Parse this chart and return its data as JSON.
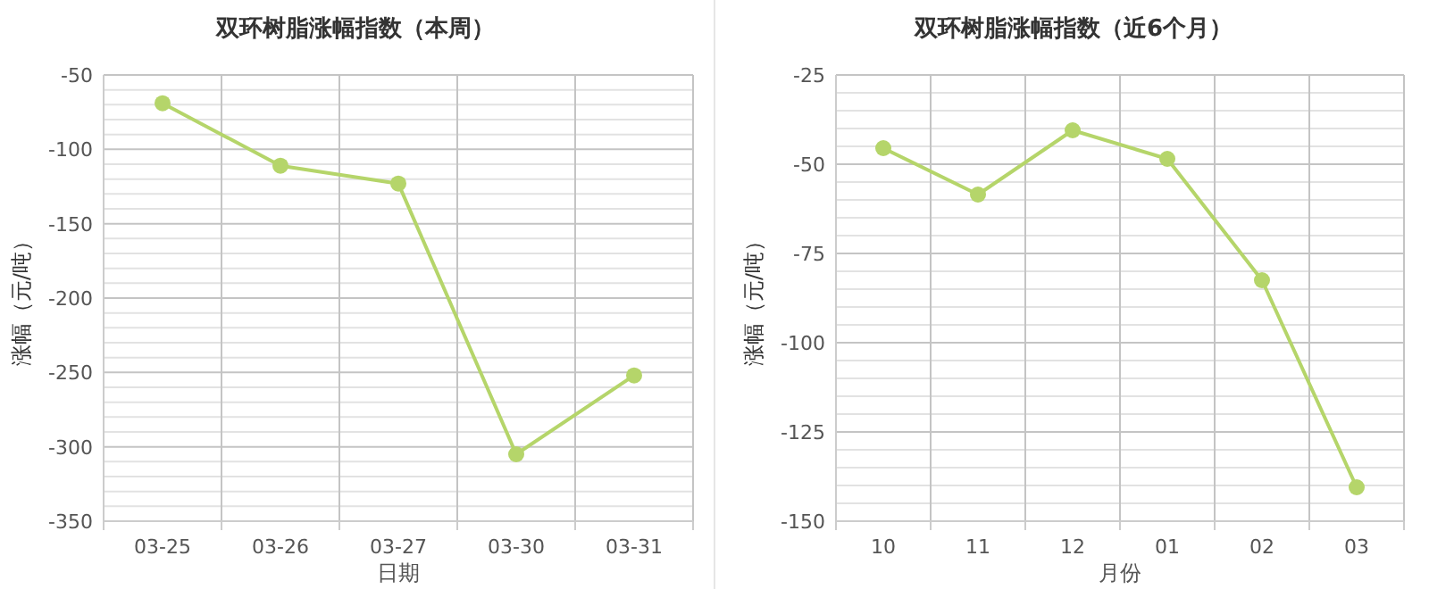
{
  "chart_data": [
    {
      "type": "line",
      "title": "双环树脂涨幅指数（本周）",
      "xlabel": "日期",
      "ylabel": "涨幅（元/吨）",
      "categories": [
        "03-25",
        "03-26",
        "03-27",
        "03-30",
        "03-31"
      ],
      "series": [
        {
          "color": "#b5d56a",
          "values": [
            -69,
            -111,
            -123,
            -305,
            -252
          ]
        }
      ],
      "ylim": [
        -350,
        -50
      ],
      "yticks": [
        -350,
        {
          "value": -340,
          "label": null
        },
        {
          "value": -330,
          "label": null
        },
        {
          "value": -320,
          "label": null
        },
        {
          "value": -310,
          "label": null
        },
        -300,
        {
          "value": -290,
          "label": null
        },
        {
          "value": -280,
          "label": null
        },
        {
          "value": -270,
          "label": null
        },
        {
          "value": -260,
          "label": null
        },
        -250,
        {
          "value": -240,
          "label": null
        },
        {
          "value": -230,
          "label": null
        },
        {
          "value": -220,
          "label": null
        },
        {
          "value": -210,
          "label": null
        },
        -200,
        {
          "value": -190,
          "label": null
        },
        {
          "value": -180,
          "label": null
        },
        {
          "value": -170,
          "label": null
        },
        {
          "value": -160,
          "label": null
        },
        -150,
        {
          "value": -140,
          "label": null
        },
        {
          "value": -130,
          "label": null
        },
        {
          "value": -120,
          "label": null
        },
        {
          "value": -110,
          "label": null
        },
        -100,
        {
          "value": -90,
          "label": null
        },
        {
          "value": -80,
          "label": null
        },
        {
          "value": -70,
          "label": null
        },
        {
          "value": -60,
          "label": null
        },
        -50
      ],
      "grid": true,
      "marker": "circle",
      "line_style": "solid"
    },
    {
      "type": "line",
      "title": "双环树脂涨幅指数（近6个月）",
      "xlabel": "月份",
      "ylabel": "涨幅（元/吨）",
      "categories": [
        "10",
        "11",
        "12",
        "01",
        "02",
        "03"
      ],
      "series": [
        {
          "color": "#b5d56a",
          "values": [
            -45.5,
            -58.5,
            -40.5,
            -48.5,
            -82.5,
            -140.5
          ]
        }
      ],
      "ylim": [
        -150,
        -25
      ],
      "yticks": [
        -150,
        {
          "value": -145,
          "label": null
        },
        {
          "value": -140,
          "label": null
        },
        {
          "value": -135,
          "label": null
        },
        {
          "value": -130,
          "label": null
        },
        -125,
        {
          "value": -120,
          "label": null
        },
        {
          "value": -115,
          "label": null
        },
        {
          "value": -110,
          "label": null
        },
        {
          "value": -105,
          "label": null
        },
        -100,
        {
          "value": -95,
          "label": null
        },
        {
          "value": -90,
          "label": null
        },
        {
          "value": -85,
          "label": null
        },
        {
          "value": -80,
          "label": null
        },
        -75,
        {
          "value": -70,
          "label": null
        },
        {
          "value": -65,
          "label": null
        },
        {
          "value": -60,
          "label": null
        },
        {
          "value": -55,
          "label": null
        },
        -50,
        {
          "value": -45,
          "label": null
        },
        {
          "value": -40,
          "label": null
        },
        {
          "value": -35,
          "label": null
        },
        {
          "value": -30,
          "label": null
        },
        -25
      ],
      "grid": true,
      "marker": "circle",
      "line_style": "solid"
    }
  ]
}
